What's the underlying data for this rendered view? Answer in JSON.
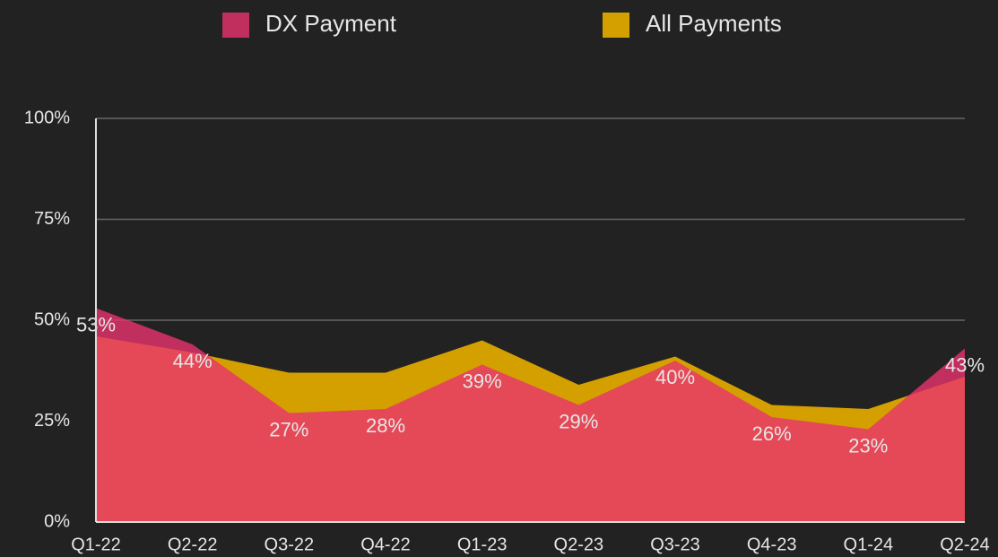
{
  "chart_data": {
    "type": "area",
    "categories": [
      "Q1-22",
      "Q2-22",
      "Q3-22",
      "Q4-22",
      "Q1-23",
      "Q2-23",
      "Q3-23",
      "Q4-23",
      "Q1-24",
      "Q2-24"
    ],
    "series": [
      {
        "name": "All Payments",
        "color": "#d4a000",
        "values": [
          46,
          42,
          37,
          37,
          45,
          34,
          41,
          29,
          28,
          36
        ]
      },
      {
        "name": "DX Payment",
        "color": "#e8336e",
        "values": [
          53,
          44,
          27,
          28,
          39,
          29,
          40,
          26,
          23,
          43
        ],
        "value_labels": [
          "53%",
          "44%",
          "27%",
          "28%",
          "39%",
          "29%",
          "40%",
          "26%",
          "23%",
          "43%"
        ]
      }
    ],
    "legend_order": [
      1,
      0
    ],
    "ylim": [
      0,
      100
    ],
    "yticks": [
      {
        "value": 0,
        "label": "0%"
      },
      {
        "value": 25,
        "label": "25%"
      },
      {
        "value": 50,
        "label": "50%"
      },
      {
        "value": 75,
        "label": "75%"
      },
      {
        "value": 100,
        "label": "100%"
      }
    ],
    "grid": true
  }
}
